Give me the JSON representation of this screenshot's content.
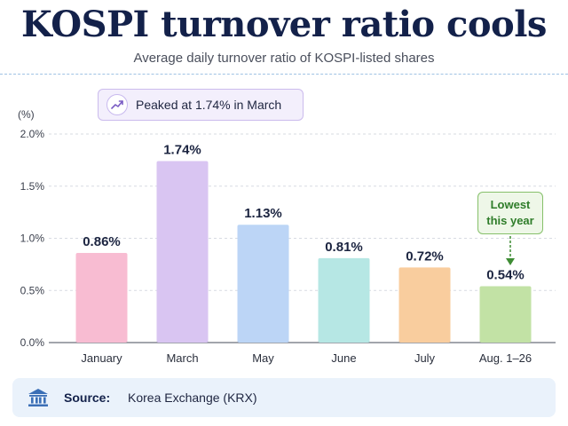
{
  "header": {
    "title": "KOSPI turnover ratio cools",
    "subtitle": "Average daily turnover ratio of KOSPI-listed shares"
  },
  "callout": {
    "text": "Peaked at 1.74% in March",
    "icon": "trend-up-icon"
  },
  "lowest_note": {
    "line1": "Lowest",
    "line2": "this year"
  },
  "source": {
    "label": "Source:",
    "text": "Korea Exchange (KRX)",
    "icon": "bank-icon"
  },
  "chart_data": {
    "type": "bar",
    "title": "KOSPI turnover ratio cools",
    "subtitle": "Average daily turnover ratio of KOSPI-listed shares",
    "ylabel": "(%)",
    "categories": [
      "January",
      "March",
      "May",
      "June",
      "July",
      "Aug. 1–26"
    ],
    "values": [
      0.86,
      1.74,
      1.13,
      0.81,
      0.72,
      0.54
    ],
    "value_labels": [
      "0.86%",
      "1.74%",
      "1.13%",
      "0.81%",
      "0.72%",
      "0.54%"
    ],
    "ylim": [
      0,
      2.0
    ],
    "yticks": [
      0,
      0.5,
      1.0,
      1.5,
      2.0
    ],
    "ytick_labels": [
      "0.0%",
      "0.5%",
      "1.0%",
      "1.5%",
      "2.0%"
    ],
    "grid": true,
    "bar_colors": [
      "#f8bcd2",
      "#d9c5f2",
      "#bcd5f6",
      "#b6e7e4",
      "#f9cd9e",
      "#c2e2a5"
    ]
  }
}
